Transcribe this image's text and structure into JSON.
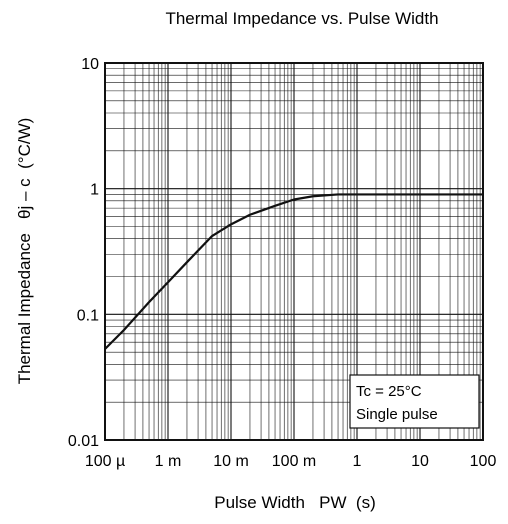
{
  "chart_data": {
    "type": "line",
    "title": "Thermal Impedance vs. Pulse Width",
    "xlabel": "Pulse Width   PW  (s)",
    "ylabel": "Thermal Impedance   θj – c  (°C/W)",
    "x_scale": "log",
    "y_scale": "log",
    "xlim": [
      0.0001,
      100
    ],
    "ylim": [
      0.01,
      10
    ],
    "grid": true,
    "x_ticks": [
      {
        "value": 0.0001,
        "label": "100 µ"
      },
      {
        "value": 0.001,
        "label": "1 m"
      },
      {
        "value": 0.01,
        "label": "10 m"
      },
      {
        "value": 0.1,
        "label": "100 m"
      },
      {
        "value": 1,
        "label": "1"
      },
      {
        "value": 10,
        "label": "10"
      },
      {
        "value": 100,
        "label": "100"
      }
    ],
    "y_ticks": [
      {
        "value": 0.01,
        "label": "0.01"
      },
      {
        "value": 0.1,
        "label": "0.1"
      },
      {
        "value": 1,
        "label": "1"
      },
      {
        "value": 10,
        "label": "10"
      }
    ],
    "series": [
      {
        "x": [
          0.0001,
          0.0002,
          0.0005,
          0.001,
          0.002,
          0.005,
          0.01,
          0.02,
          0.05,
          0.1,
          0.2,
          0.5,
          1,
          10,
          100
        ],
        "y": [
          0.053,
          0.075,
          0.125,
          0.18,
          0.26,
          0.42,
          0.52,
          0.62,
          0.73,
          0.82,
          0.87,
          0.9,
          0.9,
          0.9,
          0.9
        ]
      }
    ],
    "annotation": {
      "lines": [
        "Tc = 25°C",
        "Single pulse"
      ]
    },
    "colors": {
      "line": "#111111",
      "grid": "#111111"
    }
  }
}
